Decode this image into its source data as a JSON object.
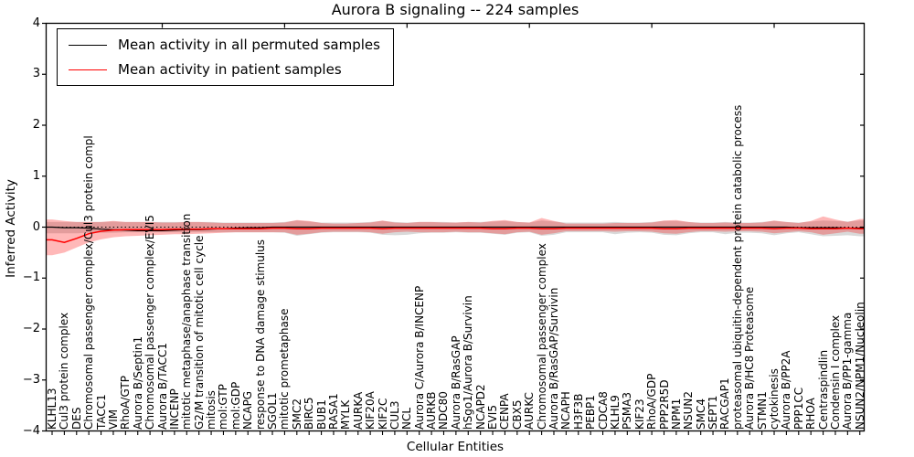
{
  "title": "Aurora B signaling -- 224 samples",
  "axes": {
    "xlabel": "Cellular Entities",
    "ylabel": "Inferred Activity",
    "yticks": [
      "4",
      "3",
      "2",
      "1",
      "0",
      "−1",
      "−2",
      "−3",
      "−4"
    ]
  },
  "legend": {
    "entries": [
      {
        "label": "Mean activity in all permuted samples",
        "color": "#000000"
      },
      {
        "label": "Mean activity in patient samples",
        "color": "#ff0000"
      }
    ]
  },
  "colors": {
    "permuted_line": "#000000",
    "patient_line": "#ff0000",
    "patient_band": "rgba(255,0,0,0.28)",
    "permuted_band": "rgba(130,130,130,0.30)",
    "zero_line": "#000000",
    "axis": "#000000",
    "background": "#ffffff"
  },
  "chart_data": {
    "type": "line",
    "title": "Aurora B signaling -- 224 samples",
    "xlabel": "Cellular Entities",
    "ylabel": "Inferred Activity",
    "ylim": [
      -4,
      4
    ],
    "grid": false,
    "legend_position": "upper left",
    "zero_reference_line": true,
    "categories": [
      "KLHL13",
      "Cul3 protein complex",
      "DES",
      "Chromosomal passenger complex/Cul3 protein compl",
      "TACC1",
      "VIM",
      "RhoA/GTP",
      "Aurora B/Septin1",
      "Chromosomal passenger complex/EVI5",
      "Aurora B/TACC1",
      "INCENP",
      "mitotic metaphase/anaphase transition",
      "G2/M transition of mitotic cell cycle",
      "mitosis",
      "mol:GTP",
      "mol:GDP",
      "NCAPG",
      "response to DNA damage stimulus",
      "SGOL1",
      "mitotic prometaphase",
      "SMC2",
      "BIRC5",
      "BUB1",
      "RASA1",
      "MYLK",
      "AURKA",
      "KIF20A",
      "KIF2C",
      "CUL3",
      "NCL",
      "Aurora C/Aurora B/INCENP",
      "AURKB",
      "NDC80",
      "Aurora B/RasGAP",
      "hSgo1/Aurora B/Survivin",
      "NCAPD2",
      "EVI5",
      "CENPA",
      "CBX5",
      "AURKC",
      "Chromosomal passenger complex",
      "Aurora B/RasGAP/Survivin",
      "NCAPH",
      "H3F3B",
      "PEBP1",
      "CDCA8",
      "KLHL9",
      "PSMA3",
      "KIF23",
      "RhoA/GDP",
      "PPP2R5D",
      "NPM1",
      "NSUN2",
      "SMC4",
      "SEPT1",
      "RACGAP1",
      "proteasomal ubiquitin-dependent protein catabolic process",
      "Aurora B/HC8 Proteasome",
      "STMN1",
      "cytokinesis",
      "Aurora B/PP2A",
      "PPP1CC",
      "RHOA",
      "Centraspindlin",
      "Condensin I complex",
      "Aurora B/PP1-gamma",
      "NSUN2/NPM1/Nucleolin"
    ],
    "series": [
      {
        "name": "Mean activity in all permuted samples",
        "color": "#000000",
        "values": [
          0.0,
          -0.01,
          -0.01,
          -0.02,
          -0.04,
          -0.05,
          -0.06,
          -0.07,
          -0.07,
          -0.07,
          -0.06,
          -0.05,
          -0.05,
          -0.04,
          -0.03,
          -0.02,
          -0.01,
          -0.01,
          0.0,
          0.0,
          0.0,
          0.0,
          0.0,
          0.0,
          0.0,
          0.0,
          0.0,
          0.0,
          0.0,
          0.0,
          0.0,
          0.0,
          0.0,
          0.0,
          0.0,
          0.0,
          0.0,
          0.0,
          0.0,
          0.0,
          0.0,
          0.0,
          0.0,
          0.0,
          0.0,
          0.0,
          0.0,
          0.0,
          0.0,
          0.0,
          0.0,
          0.0,
          0.0,
          0.0,
          0.0,
          0.0,
          0.0,
          0.0,
          0.0,
          0.0,
          0.0,
          -0.01,
          -0.01,
          -0.01,
          -0.01,
          -0.02,
          -0.02
        ]
      },
      {
        "name": "Mean activity in patient samples",
        "color": "#ff0000",
        "values": [
          -0.25,
          -0.3,
          -0.22,
          -0.13,
          -0.08,
          -0.06,
          -0.05,
          -0.05,
          -0.05,
          -0.05,
          -0.04,
          -0.04,
          -0.04,
          -0.03,
          -0.03,
          -0.03,
          -0.03,
          -0.03,
          -0.02,
          -0.02,
          -0.03,
          -0.03,
          -0.02,
          -0.02,
          -0.02,
          -0.02,
          -0.02,
          -0.03,
          -0.02,
          -0.02,
          -0.02,
          -0.02,
          -0.02,
          -0.02,
          -0.02,
          -0.02,
          -0.03,
          -0.03,
          -0.02,
          -0.02,
          -0.03,
          -0.03,
          -0.02,
          -0.02,
          -0.02,
          -0.02,
          -0.02,
          -0.02,
          -0.02,
          -0.02,
          -0.03,
          -0.03,
          -0.02,
          -0.02,
          -0.02,
          -0.02,
          -0.02,
          -0.02,
          -0.02,
          -0.03,
          -0.02,
          -0.02,
          -0.03,
          -0.03,
          -0.03,
          -0.02,
          -0.03
        ]
      }
    ],
    "bands": [
      {
        "name": "permuted samples range",
        "color": "rgba(130,130,130,0.30)",
        "upper": [
          0.1,
          0.1,
          0.1,
          0.1,
          0.1,
          0.11,
          0.1,
          0.1,
          0.1,
          0.1,
          0.1,
          0.1,
          0.1,
          0.1,
          0.09,
          0.09,
          0.09,
          0.09,
          0.09,
          0.1,
          0.13,
          0.11,
          0.09,
          0.09,
          0.09,
          0.09,
          0.1,
          0.12,
          0.1,
          0.09,
          0.1,
          0.1,
          0.1,
          0.09,
          0.1,
          0.1,
          0.11,
          0.12,
          0.1,
          0.09,
          0.13,
          0.11,
          0.09,
          0.09,
          0.09,
          0.09,
          0.1,
          0.09,
          0.09,
          0.1,
          0.12,
          0.12,
          0.1,
          0.09,
          0.09,
          0.1,
          0.09,
          0.09,
          0.1,
          0.12,
          0.1,
          0.09,
          0.11,
          0.13,
          0.12,
          0.11,
          0.13
        ],
        "lower": [
          -0.12,
          -0.12,
          -0.12,
          -0.11,
          -0.11,
          -0.11,
          -0.1,
          -0.1,
          -0.1,
          -0.1,
          -0.1,
          -0.1,
          -0.1,
          -0.1,
          -0.1,
          -0.1,
          -0.1,
          -0.1,
          -0.1,
          -0.11,
          -0.17,
          -0.14,
          -0.11,
          -0.1,
          -0.1,
          -0.1,
          -0.11,
          -0.15,
          -0.16,
          -0.15,
          -0.12,
          -0.11,
          -0.11,
          -0.1,
          -0.11,
          -0.11,
          -0.13,
          -0.15,
          -0.11,
          -0.1,
          -0.17,
          -0.15,
          -0.1,
          -0.1,
          -0.1,
          -0.1,
          -0.14,
          -0.11,
          -0.1,
          -0.11,
          -0.15,
          -0.16,
          -0.12,
          -0.1,
          -0.1,
          -0.14,
          -0.11,
          -0.11,
          -0.12,
          -0.16,
          -0.12,
          -0.1,
          -0.14,
          -0.18,
          -0.17,
          -0.16,
          -0.18
        ]
      },
      {
        "name": "patient samples range",
        "color": "rgba(255,0,0,0.28)",
        "upper": [
          0.15,
          0.12,
          0.1,
          0.1,
          0.1,
          0.12,
          0.1,
          0.1,
          0.1,
          0.09,
          0.09,
          0.1,
          0.1,
          0.09,
          0.08,
          0.08,
          0.08,
          0.08,
          0.08,
          0.09,
          0.14,
          0.12,
          0.08,
          0.07,
          0.07,
          0.08,
          0.09,
          0.13,
          0.09,
          0.08,
          0.1,
          0.1,
          0.09,
          0.09,
          0.1,
          0.09,
          0.12,
          0.14,
          0.1,
          0.09,
          0.18,
          0.12,
          0.07,
          0.07,
          0.07,
          0.07,
          0.08,
          0.08,
          0.08,
          0.09,
          0.13,
          0.14,
          0.1,
          0.08,
          0.08,
          0.09,
          0.08,
          0.08,
          0.09,
          0.13,
          0.1,
          0.08,
          0.12,
          0.21,
          0.15,
          0.1,
          0.16
        ],
        "lower": [
          -0.55,
          -0.5,
          -0.4,
          -0.3,
          -0.24,
          -0.2,
          -0.18,
          -0.17,
          -0.16,
          -0.15,
          -0.14,
          -0.14,
          -0.13,
          -0.12,
          -0.11,
          -0.1,
          -0.1,
          -0.1,
          -0.1,
          -0.1,
          -0.15,
          -0.13,
          -0.1,
          -0.09,
          -0.09,
          -0.09,
          -0.1,
          -0.13,
          -0.1,
          -0.09,
          -0.1,
          -0.1,
          -0.1,
          -0.09,
          -0.1,
          -0.1,
          -0.12,
          -0.14,
          -0.1,
          -0.09,
          -0.15,
          -0.12,
          -0.08,
          -0.08,
          -0.08,
          -0.08,
          -0.09,
          -0.08,
          -0.08,
          -0.09,
          -0.12,
          -0.13,
          -0.1,
          -0.08,
          -0.08,
          -0.09,
          -0.08,
          -0.08,
          -0.09,
          -0.12,
          -0.1,
          -0.08,
          -0.1,
          -0.15,
          -0.12,
          -0.09,
          -0.13
        ]
      }
    ]
  }
}
